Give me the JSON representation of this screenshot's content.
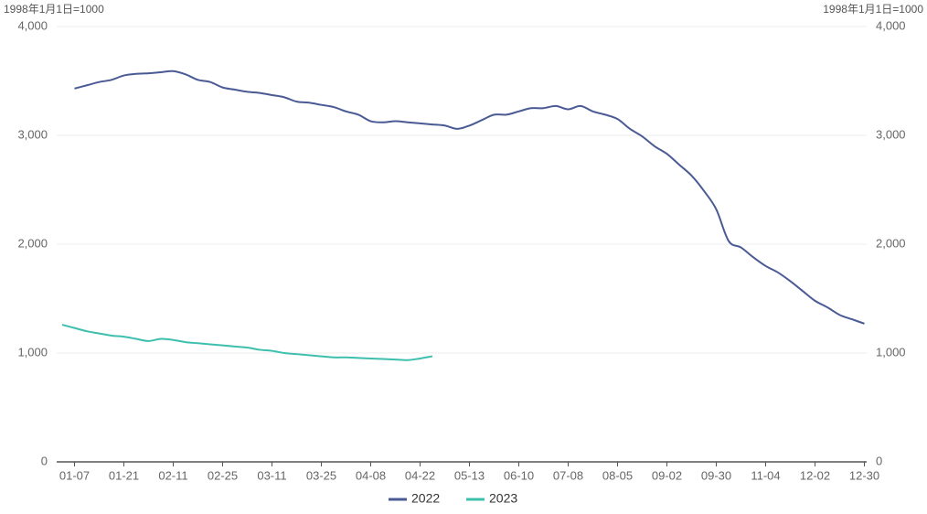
{
  "chart_data": {
    "type": "line",
    "y_label": "1998年1月1日=1000",
    "y2_label": "1998年1月1日=1000",
    "categories": [
      null,
      "01-07",
      null,
      null,
      null,
      "01-21",
      null,
      null,
      null,
      "02-11",
      null,
      null,
      null,
      "02-25",
      null,
      null,
      null,
      "03-11",
      null,
      null,
      null,
      "03-25",
      null,
      null,
      null,
      "04-08",
      null,
      null,
      null,
      "04-22",
      null,
      null,
      null,
      "05-13",
      null,
      null,
      null,
      "06-10",
      null,
      null,
      null,
      "07-08",
      null,
      null,
      null,
      "08-05",
      null,
      null,
      null,
      "09-02",
      null,
      null,
      null,
      "09-30",
      null,
      null,
      null,
      "11-04",
      null,
      null,
      null,
      "12-02",
      null,
      null,
      null,
      "12-30"
    ],
    "series": [
      {
        "name": "2022",
        "color": "#4a5a94",
        "values": [
          null,
          3430,
          3460,
          3490,
          3510,
          3550,
          3565,
          3570,
          3580,
          3590,
          3560,
          3510,
          3490,
          3440,
          3420,
          3400,
          3390,
          3370,
          3350,
          3310,
          3300,
          3280,
          3260,
          3220,
          3190,
          3130,
          3120,
          3130,
          3120,
          3110,
          3100,
          3090,
          3060,
          3090,
          3140,
          3190,
          3190,
          3220,
          3250,
          3250,
          3270,
          3240,
          3270,
          3220,
          3190,
          3150,
          3060,
          2990,
          2900,
          2830,
          2730,
          2630,
          2490,
          2320,
          2030,
          1970,
          1880,
          1800,
          1740,
          1660,
          1570,
          1480,
          1420,
          1350,
          1310,
          1270
        ]
      },
      {
        "name": "2023",
        "color": "#3dbfae",
        "values": [
          1260,
          1230,
          1200,
          1180,
          1160,
          1150,
          1130,
          1110,
          1130,
          1120,
          1100,
          1090,
          1080,
          1070,
          1060,
          1050,
          1030,
          1020,
          1000,
          990,
          980,
          970,
          960,
          960,
          955,
          950,
          945,
          940,
          935,
          950,
          970,
          null,
          null,
          null,
          null,
          null,
          null,
          null,
          null,
          null,
          null,
          null,
          null,
          null,
          null,
          null,
          null,
          null,
          null,
          null,
          null,
          null,
          null,
          null,
          null,
          null,
          null,
          null,
          null,
          null,
          null,
          null,
          null,
          null,
          null,
          null
        ]
      }
    ],
    "ylim": [
      0,
      4000
    ],
    "yticks": [
      0,
      {
        "value": 1000,
        "label": "1,000"
      },
      {
        "value": 2000,
        "label": "2,000"
      },
      {
        "value": 3000,
        "label": "3,000"
      },
      {
        "value": 4000,
        "label": "4,000"
      }
    ],
    "y2lim": [
      0,
      4000
    ],
    "y2ticks": [
      0,
      {
        "value": 1000,
        "label": "1,000"
      },
      {
        "value": 2000,
        "label": "2,000"
      },
      {
        "value": 3000,
        "label": "3,000"
      },
      {
        "value": 4000,
        "label": "4,000"
      }
    ],
    "grid": true,
    "legend": "bottom"
  }
}
